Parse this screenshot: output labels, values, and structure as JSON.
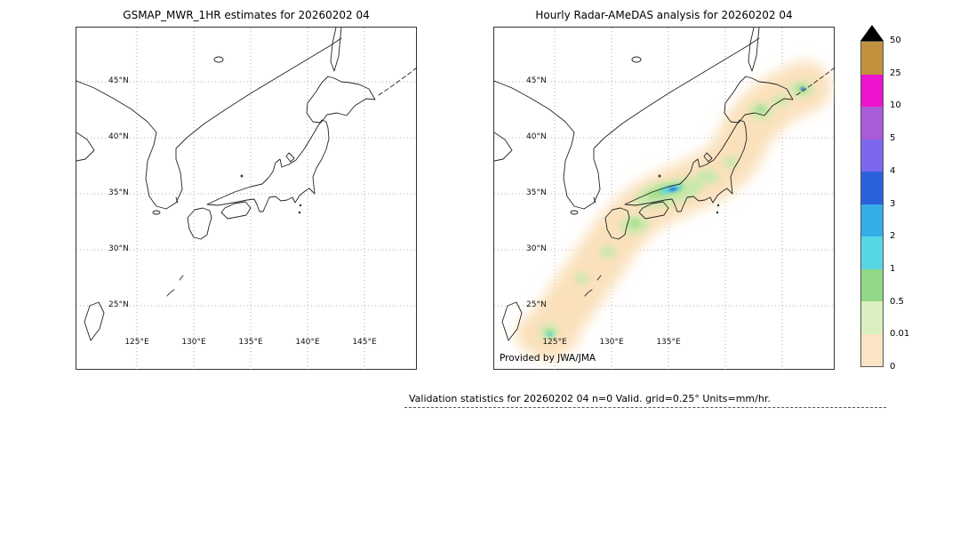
{
  "figure": {
    "background": "#ffffff"
  },
  "panels": {
    "left": {
      "title": "GSMAP_MWR_1HR estimates for 20260202 04",
      "lat_ticks": [
        "45°N",
        "40°N",
        "35°N",
        "30°N",
        "25°N"
      ],
      "lon_ticks": [
        "125°E",
        "130°E",
        "135°E",
        "140°E",
        "145°E"
      ]
    },
    "right": {
      "title": "Hourly Radar-AMeDAS analysis for 20260202 04",
      "lat_ticks": [
        "45°N",
        "40°N",
        "35°N",
        "30°N",
        "25°N"
      ],
      "lon_ticks": [
        "125°E",
        "130°E",
        "135°E"
      ],
      "provider": "Provided by JWA/JMA"
    }
  },
  "colorbar": {
    "tick_labels": [
      "50",
      "25",
      "10",
      "5",
      "4",
      "3",
      "2",
      "1",
      "0.5",
      "0.01",
      "0"
    ],
    "bands_top_to_bottom": [
      {
        "range": "25-50",
        "color": "#c2913d"
      },
      {
        "range": "10-25",
        "color": "#ee13ce"
      },
      {
        "range": "5-10",
        "color": "#a95cd8"
      },
      {
        "range": "4-5",
        "color": "#7b68ee"
      },
      {
        "range": "3-4",
        "color": "#2a62dd"
      },
      {
        "range": "2-3",
        "color": "#35aee8"
      },
      {
        "range": "1-2",
        "color": "#57d7e3"
      },
      {
        "range": "0.5-1",
        "color": "#92d787"
      },
      {
        "range": "0.01-0.5",
        "color": "#d9efbf"
      },
      {
        "range": "0-0.01",
        "color": "#fbe4c3"
      }
    ],
    "overflow_color": "#000000"
  },
  "caption": "Validation statistics for 20260202 04  n=0 Valid. grid=0.25° Units=mm/hr.",
  "chart_data": {
    "type": "heatmap",
    "levels_mm_per_hr": [
      0,
      0.01,
      0.5,
      1,
      2,
      3,
      4,
      5,
      10,
      25,
      50
    ],
    "units": "mm/hr",
    "panels": [
      {
        "title": "GSMAP_MWR_1HR estimates for 20260202 04",
        "lon_ticks_deg_e": [
          125,
          130,
          135,
          140,
          145
        ],
        "lat_ticks_deg_n": [
          45,
          40,
          35,
          30,
          25
        ],
        "precipitation": "none visible (blank map, n=0)"
      },
      {
        "title": "Hourly Radar-AMeDAS analysis for 20260202 04",
        "lon_ticks_deg_e": [
          125,
          130,
          135
        ],
        "lat_ticks_deg_n": [
          45,
          40,
          35,
          30,
          25
        ],
        "precipitation": "light 0-0.5 mm/hr band along the Japanese archipelago from Okinawa to Hokkaido; embedded 0.5-3 mm/hr cells over western Honshu, Kyushu, Hokkaido and near Okinawa"
      }
    ]
  }
}
